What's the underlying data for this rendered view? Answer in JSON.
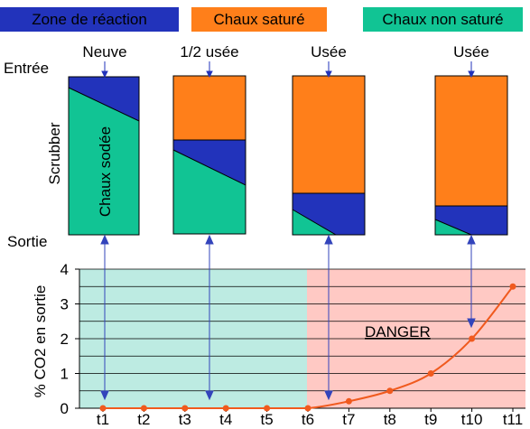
{
  "legend": {
    "reaction": {
      "label": "Zone de réaction",
      "color": "#2233BB"
    },
    "saturated": {
      "label": "Chaux saturé",
      "color": "#FF7F1A"
    },
    "unsaturated": {
      "label": "Chaux non saturé",
      "color": "#11C494"
    }
  },
  "labels": {
    "entree": "Entrée",
    "sortie": "Sortie",
    "scrubber": "Scrubber",
    "soda_lime": "Chaux sodée",
    "danger": "DANGER"
  },
  "stages": [
    {
      "label": "Neuve"
    },
    {
      "label": "1/2 usée"
    },
    {
      "label": "Usée"
    },
    {
      "label": "Usée"
    }
  ],
  "chart_data": {
    "type": "line",
    "ylabel": "% CO2 en sortie",
    "ylim": [
      0,
      4
    ],
    "yticks": [
      "0",
      "1",
      "2",
      "3",
      "4"
    ],
    "categories": [
      "t1",
      "t2",
      "t3",
      "t4",
      "t5",
      "t6",
      "t7",
      "t8",
      "t9",
      "t10",
      "t11"
    ],
    "values": [
      0,
      0,
      0,
      0,
      0,
      0,
      0.2,
      0.5,
      1.0,
      2.0,
      3.5
    ],
    "safe_zone_color": "#BDEBE2",
    "danger_zone_color": "#FFC9C4",
    "line_color": "#F05A1E",
    "grid": true
  }
}
